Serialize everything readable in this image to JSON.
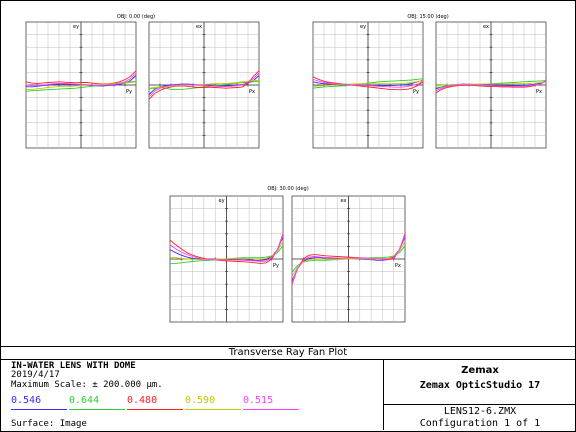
{
  "plot": {
    "fields": [
      {
        "label": "OBJ: 0.00 (deg)",
        "tangential_axis": "ey",
        "sagittal_axis": "ex",
        "pupil_y": "Py",
        "pupil_x": "Px"
      },
      {
        "label": "OBJ: 15.00 (deg)",
        "tangential_axis": "ey",
        "sagittal_axis": "ex",
        "pupil_y": "Py",
        "pupil_x": "Px"
      },
      {
        "label": "OBJ: 30.00 (deg)",
        "tangential_axis": "ey",
        "sagittal_axis": "ex",
        "pupil_y": "Py",
        "pupil_x": "Px"
      }
    ]
  },
  "chart_data": {
    "type": "line",
    "title": "Transverse Ray Fan Plot",
    "scale_um": 200.0,
    "x": [
      -1,
      -0.9,
      -0.8,
      -0.7,
      -0.6,
      -0.5,
      -0.4,
      -0.3,
      -0.2,
      -0.1,
      0,
      0.1,
      0.2,
      0.3,
      0.4,
      0.5,
      0.6,
      0.7,
      0.8,
      0.9,
      1
    ],
    "panels": [
      {
        "field": "OBJ: 0.00 (deg)",
        "axis": "ey",
        "series": [
          {
            "name": "0.546",
            "values": [
              -5,
              -6,
              -4,
              -2,
              0,
              2,
              3,
              3,
              2,
              1,
              0,
              -1,
              -2,
              -3,
              -3,
              -2,
              0,
              2,
              6,
              14,
              30
            ]
          },
          {
            "name": "0.644",
            "values": [
              -20,
              -18,
              -17,
              -16,
              -15,
              -14,
              -13,
              -12,
              -11,
              -10,
              -8,
              -6,
              -4,
              -2,
              0,
              2,
              4,
              6,
              8,
              10,
              12
            ]
          },
          {
            "name": "0.480",
            "values": [
              10,
              6,
              5,
              6,
              8,
              9,
              10,
              9,
              8,
              7,
              8,
              8,
              6,
              4,
              3,
              4,
              6,
              10,
              17,
              28,
              45
            ]
          },
          {
            "name": "0.590",
            "values": [
              -15,
              -14,
              -12,
              -10,
              -8,
              -6,
              -5,
              -4,
              -4,
              -3,
              -2,
              -1,
              0,
              1,
              2,
              3,
              4,
              5,
              6,
              8,
              10
            ]
          },
          {
            "name": "0.515",
            "values": [
              0,
              -2,
              -1,
              0,
              2,
              4,
              5,
              5,
              4,
              3,
              2,
              1,
              0,
              -1,
              -1,
              0,
              2,
              5,
              10,
              20,
              38
            ]
          }
        ]
      },
      {
        "field": "OBJ: 0.00 (deg)",
        "axis": "ex",
        "series": [
          {
            "name": "0.546",
            "values": [
              -30,
              -14,
              -6,
              -2,
              0,
              2,
              3,
              3,
              2,
              1,
              0,
              -1,
              -2,
              -3,
              -3,
              -2,
              0,
              2,
              6,
              14,
              30
            ]
          },
          {
            "name": "0.644",
            "values": [
              -12,
              -10,
              -8,
              -10,
              -14,
              -15,
              -14,
              -12,
              -10,
              -8,
              -6,
              -4,
              -2,
              0,
              2,
              4,
              6,
              8,
              8,
              10,
              12
            ]
          },
          {
            "name": "0.480",
            "values": [
              -45,
              -28,
              -17,
              -10,
              -6,
              -4,
              -3,
              -4,
              -6,
              -8,
              -8,
              -7,
              -8,
              -9,
              -10,
              -9,
              -8,
              -6,
              5,
              28,
              45
            ]
          },
          {
            "name": "0.590",
            "values": [
              -10,
              -8,
              -6,
              -5,
              -4,
              -3,
              -2,
              -1,
              0,
              1,
              2,
              3,
              4,
              4,
              5,
              6,
              8,
              10,
              12,
              14,
              15
            ]
          },
          {
            "name": "0.515",
            "values": [
              -38,
              -20,
              -10,
              -5,
              -2,
              0,
              1,
              1,
              0,
              -1,
              -2,
              -3,
              -4,
              -5,
              -5,
              -4,
              -2,
              0,
              10,
              20,
              38
            ]
          }
        ]
      },
      {
        "field": "OBJ: 15.00 (deg)",
        "axis": "ey",
        "series": [
          {
            "name": "0.546",
            "values": [
              10,
              6,
              4,
              3,
              3,
              2,
              1,
              0,
              -1,
              -2,
              -2,
              -2,
              -2,
              -2,
              -2,
              -1,
              0,
              2,
              5,
              10,
              16
            ]
          },
          {
            "name": "0.644",
            "values": [
              -10,
              -8,
              -6,
              -5,
              -4,
              -3,
              -2,
              0,
              2,
              4,
              6,
              8,
              10,
              11,
              12,
              13,
              14,
              15,
              16,
              18,
              20
            ]
          },
          {
            "name": "0.480",
            "values": [
              26,
              18,
              12,
              8,
              6,
              4,
              2,
              0,
              -2,
              -4,
              -6,
              -8,
              -10,
              -12,
              -14,
              -15,
              -15,
              -14,
              -10,
              -2,
              10
            ]
          },
          {
            "name": "0.590",
            "values": [
              -4,
              -3,
              -2,
              -1,
              0,
              1,
              2,
              3,
              4,
              4,
              4,
              4,
              4,
              4,
              4,
              4,
              5,
              6,
              8,
              11,
              14
            ]
          },
          {
            "name": "0.515",
            "values": [
              18,
              12,
              8,
              5,
              4,
              3,
              2,
              1,
              0,
              -1,
              -2,
              -3,
              -4,
              -5,
              -6,
              -7,
              -7,
              -5,
              -2,
              3,
              12
            ]
          }
        ]
      },
      {
        "field": "OBJ: 15.00 (deg)",
        "axis": "ex",
        "series": [
          {
            "name": "0.546",
            "values": [
              -12,
              -6,
              -2,
              1,
              2,
              3,
              3,
              2,
              1,
              0,
              0,
              0,
              -1,
              -2,
              -3,
              -2,
              -1,
              1,
              2,
              6,
              12
            ]
          },
          {
            "name": "0.644",
            "values": [
              -8,
              -6,
              -4,
              -3,
              -2,
              -1,
              0,
              1,
              2,
              3,
              4,
              5,
              6,
              7,
              8,
              9,
              10,
              11,
              12,
              13,
              14
            ]
          },
          {
            "name": "0.480",
            "values": [
              -25,
              -14,
              -8,
              -4,
              -2,
              -1,
              -1,
              -2,
              -3,
              -4,
              -5,
              -5,
              -6,
              -6,
              -7,
              -7,
              -7,
              -5,
              -2,
              4,
              14
            ]
          },
          {
            "name": "0.590",
            "values": [
              -2,
              -1,
              0,
              1,
              2,
              2,
              3,
              3,
              3,
              3,
              3,
              3,
              3,
              3,
              4,
              4,
              4,
              5,
              6,
              8,
              10
            ]
          },
          {
            "name": "0.515",
            "values": [
              -18,
              -10,
              -5,
              -2,
              0,
              1,
              1,
              0,
              -1,
              -2,
              -2,
              -3,
              -3,
              -4,
              -5,
              -5,
              -4,
              -2,
              0,
              3,
              12
            ]
          }
        ]
      },
      {
        "field": "OBJ: 30.00 (deg)",
        "axis": "ey",
        "series": [
          {
            "name": "0.546",
            "values": [
              30,
              20,
              12,
              6,
              2,
              0,
              -1,
              -2,
              -2,
              -1,
              0,
              1,
              1,
              0,
              -2,
              -4,
              -4,
              -2,
              8,
              30,
              70
            ]
          },
          {
            "name": "0.644",
            "values": [
              -15,
              -14,
              -12,
              -10,
              -8,
              -6,
              -5,
              -4,
              -3,
              -2,
              0,
              2,
              3,
              4,
              4,
              4,
              4,
              6,
              10,
              20,
              42
            ]
          },
          {
            "name": "0.480",
            "values": [
              60,
              45,
              32,
              20,
              12,
              6,
              2,
              -1,
              -3,
              -5,
              -6,
              -7,
              -8,
              -9,
              -10,
              -12,
              -14,
              -12,
              0,
              30,
              80
            ]
          },
          {
            "name": "0.590",
            "values": [
              6,
              4,
              2,
              0,
              -1,
              -2,
              -2,
              -2,
              -1,
              0,
              1,
              2,
              2,
              2,
              1,
              0,
              0,
              2,
              10,
              25,
              55
            ]
          },
          {
            "name": "0.515",
            "values": [
              45,
              32,
              22,
              14,
              8,
              3,
              0,
              -2,
              -3,
              -3,
              -3,
              -3,
              -3,
              -4,
              -5,
              -6,
              -8,
              -6,
              4,
              30,
              75
            ]
          }
        ]
      },
      {
        "field": "OBJ: 30.00 (deg)",
        "axis": "ex",
        "series": [
          {
            "name": "0.546",
            "values": [
              -70,
              -30,
              -8,
              2,
              4,
              4,
              2,
              1,
              0,
              0,
              0,
              0,
              0,
              -1,
              -2,
              -4,
              -4,
              -2,
              8,
              30,
              70
            ]
          },
          {
            "name": "0.644",
            "values": [
              -42,
              -20,
              -10,
              -6,
              -4,
              -4,
              -4,
              -3,
              -2,
              -1,
              0,
              1,
              2,
              3,
              4,
              4,
              4,
              6,
              10,
              20,
              42
            ]
          },
          {
            "name": "0.480",
            "values": [
              -80,
              -30,
              0,
              12,
              14,
              12,
              10,
              9,
              8,
              7,
              6,
              5,
              4,
              3,
              2,
              0,
              -1,
              -2,
              0,
              30,
              80
            ]
          },
          {
            "name": "0.590",
            "values": [
              -55,
              -25,
              -10,
              -2,
              0,
              0,
              0,
              -1,
              -1,
              0,
              0,
              0,
              1,
              1,
              0,
              0,
              0,
              2,
              10,
              25,
              55
            ]
          },
          {
            "name": "0.515",
            "values": [
              -75,
              -30,
              -4,
              6,
              8,
              6,
              5,
              4,
              3,
              3,
              3,
              3,
              3,
              3,
              3,
              2,
              1,
              0,
              4,
              30,
              75
            ]
          }
        ]
      }
    ]
  },
  "titleblock": {
    "plot_title": "Transverse Ray Fan Plot",
    "lens_name": "IN-WATER LENS WITH DOME",
    "date": "2019/4/17",
    "max_scale": "Maximum Scale: ± 200.000 μm.",
    "surface": "Surface: Image",
    "company": "Zemax",
    "product": "Zemax OpticStudio 17",
    "file": "LENS12-6.ZMX",
    "config": "Configuration 1 of 1",
    "wavelengths": [
      {
        "label": "0.546",
        "color": "#3030ff"
      },
      {
        "label": "0.644",
        "color": "#30d030"
      },
      {
        "label": "0.480",
        "color": "#ff2020"
      },
      {
        "label": "0.590",
        "color": "#c8c800"
      },
      {
        "label": "0.515",
        "color": "#ff40ff"
      }
    ]
  }
}
